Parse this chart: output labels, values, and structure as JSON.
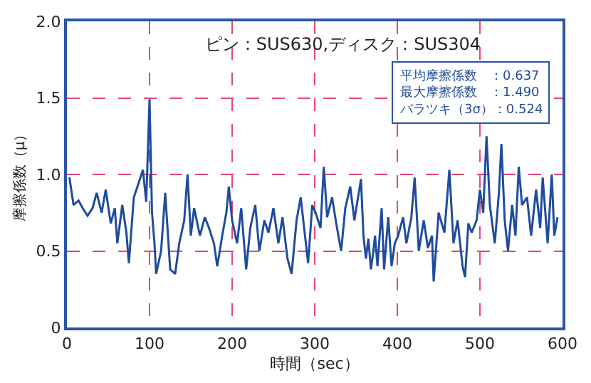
{
  "chart_data": {
    "type": "line",
    "title": "ピン：SUS630,ディスク：SUS304",
    "xlabel": "時間（sec）",
    "ylabel": "摩擦係数（μ）",
    "annotations": [
      "平均摩擦係数　：0.637",
      "最大摩擦係数　：1.490",
      "バラツキ（3σ）：0.524"
    ],
    "xlim": [
      0,
      600
    ],
    "xticks": [
      0,
      100,
      200,
      300,
      400,
      500,
      600
    ],
    "ylim": [
      0,
      2.0
    ],
    "yticks": [
      0,
      0.5,
      {
        "value": 1.0,
        "label": "1.0"
      },
      1.5,
      {
        "value": 2.0,
        "label": "2.0"
      }
    ],
    "grid": true,
    "marker": "none",
    "line_style": "solid",
    "series": [
      {
        "color": "#1f4c9e",
        "x": [
          3,
          8,
          14,
          19,
          25,
          31,
          36,
          42,
          47,
          53,
          58,
          61,
          67,
          72,
          75,
          81,
          86,
          92,
          96,
          100,
          103,
          106,
          108,
          114,
          119,
          125,
          131,
          136,
          142,
          146,
          150,
          154,
          161,
          167,
          172,
          178,
          182,
          188,
          193,
          196,
          200,
          206,
          211,
          217,
          222,
          228,
          233,
          239,
          244,
          250,
          256,
          261,
          267,
          272,
          278,
          283,
          292,
          297,
          301,
          307,
          311,
          315,
          321,
          326,
          332,
          337,
          343,
          348,
          356,
          359,
          362,
          365,
          368,
          371,
          373,
          376,
          381,
          384,
          389,
          393,
          397,
          401,
          407,
          411,
          417,
          421,
          426,
          432,
          437,
          442,
          444,
          450,
          457,
          463,
          468,
          473,
          479,
          482,
          486,
          490,
          496,
          500,
          504,
          508,
          512,
          518,
          523,
          526,
          530,
          534,
          539,
          543,
          547,
          551,
          557,
          562,
          568,
          573,
          576,
          582,
          587,
          590,
          594
        ],
        "values": [
          0.98,
          0.8,
          0.83,
          0.78,
          0.73,
          0.78,
          0.88,
          0.75,
          0.9,
          0.68,
          0.78,
          0.55,
          0.8,
          0.62,
          0.42,
          0.85,
          0.93,
          1.03,
          0.82,
          1.49,
          0.75,
          0.55,
          0.35,
          0.5,
          0.88,
          0.38,
          0.35,
          0.55,
          0.7,
          1.0,
          0.6,
          0.78,
          0.6,
          0.72,
          0.65,
          0.55,
          0.4,
          0.6,
          0.75,
          0.92,
          0.7,
          0.55,
          0.78,
          0.38,
          0.65,
          0.8,
          0.5,
          0.7,
          0.62,
          0.78,
          0.55,
          0.72,
          0.45,
          0.35,
          0.7,
          0.85,
          0.42,
          0.8,
          0.75,
          0.65,
          1.05,
          0.72,
          0.85,
          0.68,
          0.5,
          0.78,
          0.92,
          0.7,
          0.97,
          0.6,
          0.45,
          0.58,
          0.38,
          0.5,
          0.6,
          0.4,
          0.78,
          0.38,
          0.72,
          0.4,
          0.55,
          0.6,
          0.72,
          0.55,
          0.72,
          0.98,
          0.5,
          0.7,
          0.52,
          0.6,
          0.3,
          0.75,
          0.62,
          1.03,
          0.55,
          0.7,
          0.4,
          0.33,
          0.68,
          0.62,
          0.7,
          0.9,
          0.75,
          1.25,
          0.8,
          0.55,
          0.88,
          1.2,
          0.7,
          0.5,
          0.8,
          0.6,
          1.05,
          0.8,
          0.85,
          0.6,
          0.9,
          0.65,
          0.98,
          0.55,
          1.0,
          0.6,
          0.72
        ]
      }
    ]
  }
}
